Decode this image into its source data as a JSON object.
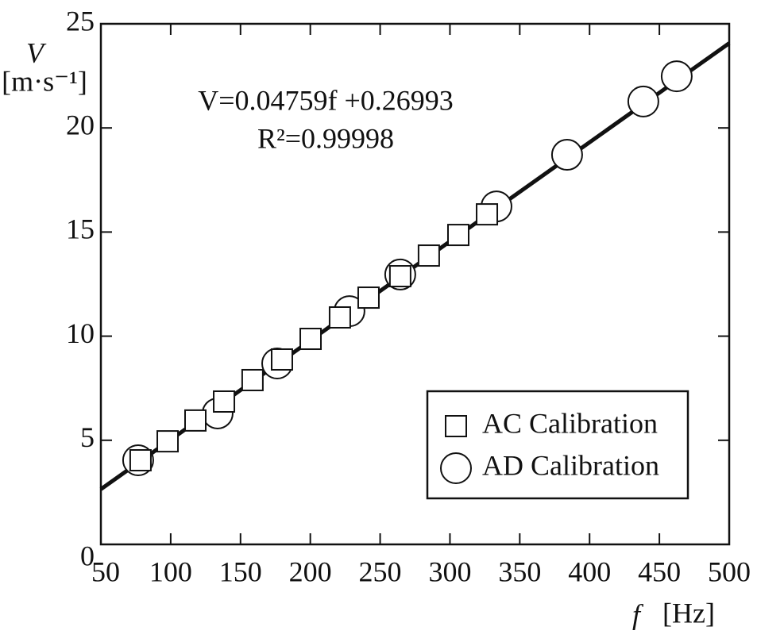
{
  "chart_data": {
    "type": "scatter",
    "x_label": {
      "symbol": "f",
      "unit": "[Hz]"
    },
    "y_label": {
      "symbol": "V",
      "unit": "[m·s⁻¹]"
    },
    "annotations": [
      "V=0.04759f +0.26993",
      "R²=0.99998"
    ],
    "xlim": [
      50,
      500
    ],
    "ylim": [
      0,
      25
    ],
    "xticks": [
      50,
      100,
      150,
      200,
      250,
      300,
      350,
      400,
      450,
      500
    ],
    "yticks": [
      0,
      5,
      10,
      15,
      20,
      25
    ],
    "legend": "lower right",
    "fit_line": {
      "color": "#111111",
      "x": [
        50,
        500
      ],
      "values": [
        2.65,
        24.07
      ]
    },
    "series": [
      {
        "name": "AD Calibration",
        "marker": "circle",
        "color": "#111111",
        "x": [
          76.7,
          133.6,
          176.3,
          228,
          264.4,
          333.3,
          383.9,
          438.5,
          462.4
        ],
        "values": [
          4.04,
          6.29,
          8.69,
          11.2,
          12.96,
          16.23,
          18.71,
          21.27,
          22.48
        ]
      },
      {
        "name": "AC Calibration",
        "marker": "square",
        "color": "#111111",
        "x": [
          78.4,
          97.8,
          117.7,
          138.2,
          158.6,
          179.7,
          200.2,
          221.2,
          241.7,
          264.4,
          284.9,
          306,
          326.5
        ],
        "values": [
          4.04,
          4.95,
          5.95,
          6.86,
          7.89,
          8.88,
          9.87,
          10.9,
          11.85,
          12.88,
          13.87,
          14.86,
          15.85
        ]
      }
    ]
  }
}
